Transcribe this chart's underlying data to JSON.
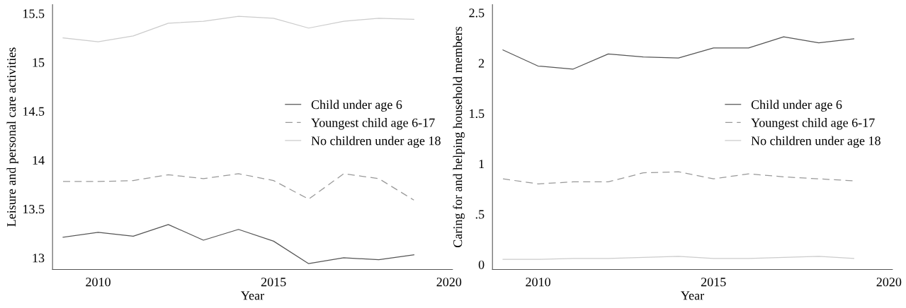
{
  "chart_data": [
    {
      "type": "line",
      "xlabel": "Year",
      "ylabel": "Leisure and personal care activities",
      "x": [
        2009,
        2010,
        2011,
        2012,
        2013,
        2014,
        2015,
        2016,
        2017,
        2018,
        2019
      ],
      "xlim": [
        2008.7,
        2020.1
      ],
      "xticks": [
        2010,
        2015,
        2020
      ],
      "ylim": [
        12.88,
        15.59
      ],
      "yticks": [
        13,
        13.5,
        14,
        14.5,
        15,
        15.5
      ],
      "grid": false,
      "legend": "right",
      "series": [
        {
          "name": "Child under age 6",
          "color": "#555555",
          "line_style": "solid",
          "values": [
            13.21,
            13.26,
            13.22,
            13.34,
            13.18,
            13.29,
            13.17,
            12.94,
            13.0,
            12.98,
            13.03
          ]
        },
        {
          "name": "Youngest child age 6-17",
          "color": "#999999",
          "line_style": "dashed",
          "values": [
            13.78,
            13.78,
            13.79,
            13.85,
            13.81,
            13.86,
            13.79,
            13.6,
            13.86,
            13.81,
            13.59
          ]
        },
        {
          "name": "No children under age 18",
          "color": "#cccccc",
          "line_style": "solid",
          "values": [
            15.25,
            15.21,
            15.27,
            15.4,
            15.42,
            15.47,
            15.45,
            15.35,
            15.42,
            15.45,
            15.44
          ]
        }
      ]
    },
    {
      "type": "line",
      "xlabel": "Year",
      "ylabel": "Caring for and helping household members",
      "x": [
        2009,
        2010,
        2011,
        2012,
        2013,
        2014,
        2015,
        2016,
        2017,
        2018,
        2019
      ],
      "xlim": [
        2008.7,
        2020.1
      ],
      "xticks": [
        2010,
        2015,
        2020
      ],
      "ylim": [
        -0.05,
        2.58
      ],
      "yticks": [
        0,
        {
          "value": 0.5,
          "label": ".5"
        },
        1,
        1.5,
        2,
        2.5
      ],
      "grid": false,
      "legend": "right",
      "series": [
        {
          "name": "Child under age 6",
          "color": "#555555",
          "line_style": "solid",
          "values": [
            2.13,
            1.97,
            1.94,
            2.09,
            2.06,
            2.05,
            2.15,
            2.15,
            2.26,
            2.2,
            2.24
          ]
        },
        {
          "name": "Youngest child age 6-17",
          "color": "#999999",
          "line_style": "dashed",
          "values": [
            0.85,
            0.8,
            0.82,
            0.82,
            0.91,
            0.92,
            0.85,
            0.9,
            0.87,
            0.85,
            0.83
          ]
        },
        {
          "name": "No children under age 18",
          "color": "#cccccc",
          "line_style": "solid",
          "values": [
            0.05,
            0.05,
            0.06,
            0.06,
            0.07,
            0.08,
            0.06,
            0.06,
            0.07,
            0.08,
            0.06
          ]
        }
      ]
    }
  ]
}
